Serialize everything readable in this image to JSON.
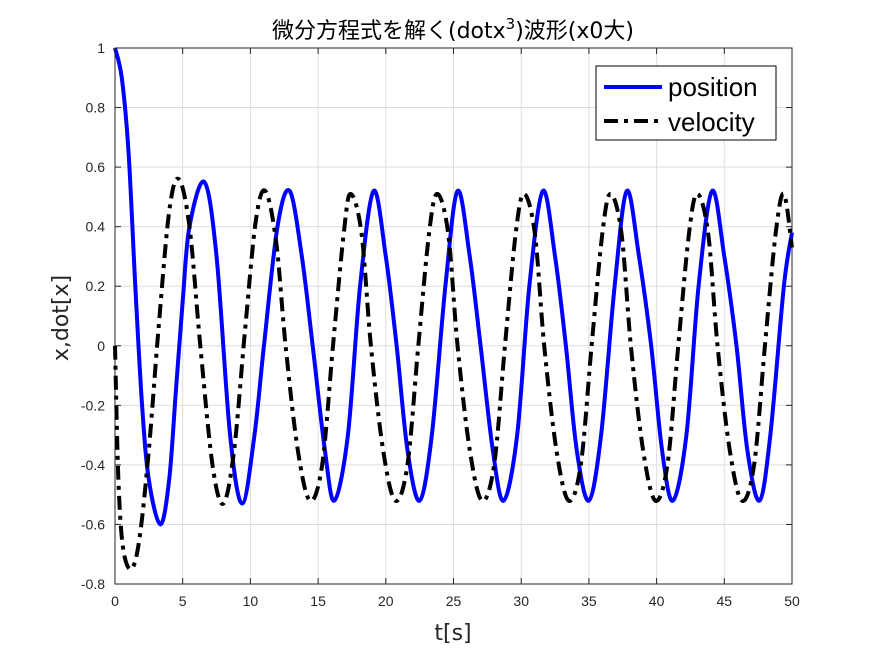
{
  "chart_data": {
    "type": "line",
    "title": "微分方程式を解く(dotx",
    "title_superscript": "3",
    "title_suffix": ")波形(x0大)",
    "xlabel": "t[s]",
    "ylabel": "x,dot[x]",
    "xlim": [
      0,
      50
    ],
    "ylim": [
      -0.8,
      1
    ],
    "xticks": [
      0,
      5,
      10,
      15,
      20,
      25,
      30,
      35,
      40,
      45,
      50
    ],
    "yticks": [
      -0.8,
      -0.6,
      -0.4,
      -0.2,
      0,
      0.2,
      0.4,
      0.6,
      0.8,
      1
    ],
    "xtick_labels": [
      "0",
      "5",
      "10",
      "15",
      "20",
      "25",
      "30",
      "35",
      "40",
      "45",
      "50"
    ],
    "ytick_labels": [
      "-0.8",
      "-0.6",
      "-0.4",
      "-0.2",
      "0",
      "0.2",
      "0.4",
      "0.6",
      "0.8",
      "1"
    ],
    "grid": true,
    "legend": {
      "location": "top-right"
    },
    "series": [
      {
        "name": "position",
        "color": "#0000ff",
        "style": "solid",
        "x": [
          0,
          0.5,
          1,
          1.5,
          2,
          2.5,
          3.35,
          4,
          4.5,
          5,
          5.5,
          6.6,
          7.5,
          8.5,
          9.4,
          10.3,
          11,
          12,
          12.9,
          13.8,
          14.6,
          15.5,
          16.2,
          17.2,
          18.1,
          19.1,
          20,
          20.8,
          21.6,
          22.5,
          23.4,
          24.4,
          25.3,
          26.2,
          27,
          27.9,
          28.7,
          29.7,
          30.6,
          31.6,
          32.5,
          33.3,
          34.1,
          35,
          35.9,
          36.9,
          37.8,
          38.7,
          39.6,
          40.4,
          41.2,
          42.2,
          43.1,
          44.1,
          45,
          45.9,
          46.7,
          47.6,
          48.4,
          49.4,
          50
        ],
        "y": [
          1,
          0.9,
          0.65,
          0.2,
          -0.2,
          -0.45,
          -0.6,
          -0.45,
          -0.15,
          0.15,
          0.4,
          0.55,
          0.3,
          -0.3,
          -0.53,
          -0.3,
          0,
          0.4,
          0.52,
          0.3,
          0,
          -0.35,
          -0.52,
          -0.3,
          0.2,
          0.52,
          0.3,
          0,
          -0.35,
          -0.52,
          -0.3,
          0.2,
          0.52,
          0.3,
          0,
          -0.35,
          -0.52,
          -0.3,
          0.2,
          0.52,
          0.3,
          0,
          -0.35,
          -0.52,
          -0.3,
          0.2,
          0.52,
          0.3,
          0,
          -0.35,
          -0.52,
          -0.3,
          0.2,
          0.52,
          0.3,
          0,
          -0.35,
          -0.52,
          -0.3,
          0.2,
          0.38
        ]
      },
      {
        "name": "velocity",
        "color": "#000000",
        "style": "dashdot",
        "x": [
          0,
          0.25,
          0.6,
          1.2,
          1.8,
          2.5,
          3.2,
          4,
          4.7,
          5.5,
          6.3,
          7.2,
          8,
          8.8,
          9.6,
          10.4,
          11.1,
          11.9,
          12.6,
          13.5,
          14.4,
          15.3,
          16.1,
          16.9,
          17.4,
          18.2,
          18.9,
          19.8,
          20.7,
          21.6,
          22.4,
          23.2,
          23.8,
          24.6,
          25.3,
          26.2,
          27.1,
          28,
          28.8,
          29.6,
          30.2,
          31,
          31.7,
          32.6,
          33.5,
          34.4,
          35.2,
          36,
          36.6,
          37.4,
          38.1,
          39,
          39.9,
          40.8,
          41.6,
          42.4,
          43,
          43.8,
          44.5,
          45.4,
          46.3,
          47.2,
          48,
          48.8,
          49.4,
          50
        ],
        "y": [
          0,
          -0.45,
          -0.68,
          -0.75,
          -0.65,
          -0.35,
          0.05,
          0.45,
          0.56,
          0.4,
          0.0,
          -0.4,
          -0.53,
          -0.35,
          0.05,
          0.42,
          0.52,
          0.35,
          0.0,
          -0.35,
          -0.52,
          -0.4,
          0.0,
          0.38,
          0.51,
          0.38,
          0.0,
          -0.35,
          -0.52,
          -0.4,
          0.0,
          0.38,
          0.51,
          0.38,
          0.0,
          -0.35,
          -0.52,
          -0.4,
          0.0,
          0.38,
          0.51,
          0.38,
          0.0,
          -0.35,
          -0.52,
          -0.4,
          0.0,
          0.38,
          0.51,
          0.38,
          0.0,
          -0.35,
          -0.52,
          -0.4,
          0.0,
          0.38,
          0.51,
          0.38,
          0.0,
          -0.35,
          -0.52,
          -0.4,
          0.0,
          0.38,
          0.51,
          0.33
        ]
      }
    ]
  }
}
